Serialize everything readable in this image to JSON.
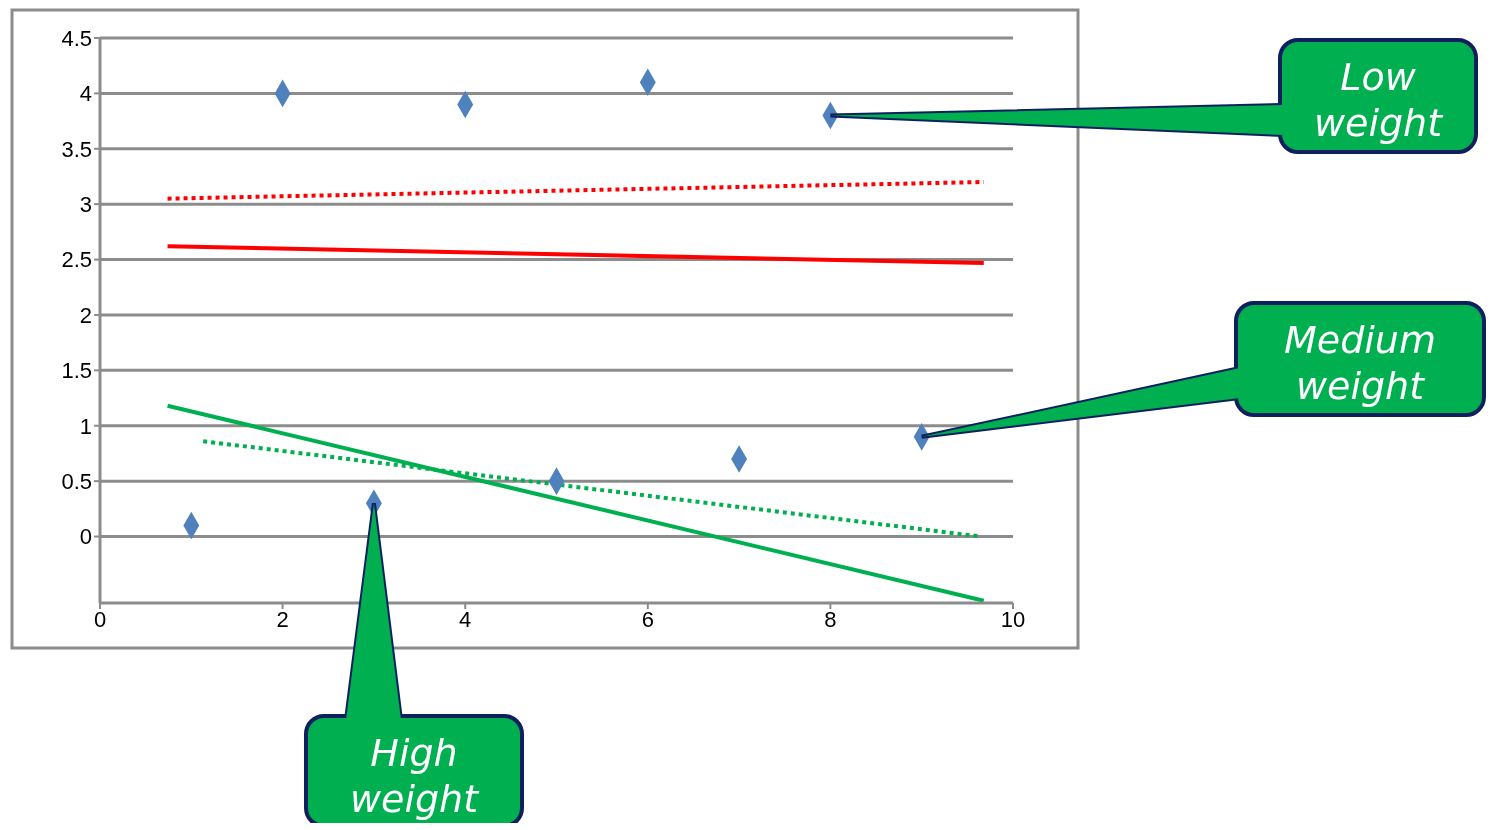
{
  "chart_data": {
    "type": "scatter",
    "xlim": [
      0,
      10
    ],
    "xticks": [
      0,
      2,
      4,
      6,
      8,
      10
    ],
    "ylim": [
      -0.6,
      4.5
    ],
    "yticks": [
      0,
      0.5,
      1,
      1.5,
      2,
      2.5,
      3,
      3.5,
      4,
      4.5
    ],
    "grid": "y",
    "series": [
      {
        "x": [
          1,
          2,
          3,
          4,
          5,
          6,
          7,
          8,
          9
        ],
        "values": [
          0.1,
          4.0,
          0.3,
          3.9,
          0.5,
          4.1,
          0.7,
          3.8,
          0.9
        ],
        "color": "#4f81bd",
        "marker": "diamond"
      },
      {
        "type": "line",
        "x": [
          0.74,
          9.68
        ],
        "values": [
          2.62,
          2.47
        ],
        "color": "#ff0000",
        "line_style": "solid",
        "marker": "none"
      },
      {
        "type": "line",
        "x": [
          0.74,
          9.68
        ],
        "values": [
          3.05,
          3.2
        ],
        "color": "#ff0000",
        "line_style": "dotted",
        "marker": "none"
      },
      {
        "type": "line",
        "x": [
          0.74,
          9.68
        ],
        "values": [
          1.18,
          -0.58
        ],
        "color": "#00b050",
        "line_style": "solid",
        "marker": "none"
      },
      {
        "type": "line",
        "x": [
          1.13,
          9.65
        ],
        "values": [
          0.86,
          0.0
        ],
        "color": "#00b050",
        "line_style": "dotted",
        "marker": "none"
      }
    ],
    "annotations": [
      {
        "text": "Low weight",
        "x": 8,
        "y": 3.8
      },
      {
        "text": "Medium weight",
        "x": 9,
        "y": 0.9
      },
      {
        "text": "High weight",
        "x": 3,
        "y": 0.3
      }
    ]
  }
}
